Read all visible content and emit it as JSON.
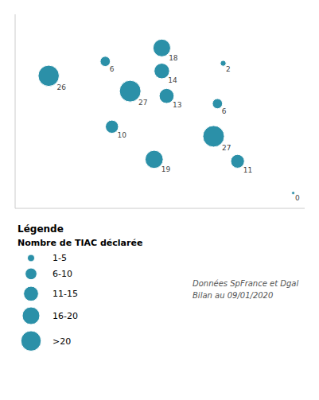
{
  "chart_data": {
    "type": "scatter",
    "x": [
      -3.55,
      -0.6,
      2.35,
      2.35,
      5.55,
      0.7,
      2.6,
      5.25,
      -0.25,
      5.05,
      1.95,
      6.3,
      9.2
    ],
    "y": [
      48.1,
      48.85,
      49.55,
      48.35,
      48.75,
      47.3,
      47.05,
      46.65,
      45.45,
      44.95,
      43.75,
      43.65,
      42.0
    ],
    "sizes": [
      26,
      6,
      18,
      14,
      2,
      27,
      13,
      6,
      10,
      27,
      19,
      11,
      0
    ],
    "data_labels": true,
    "color": "#2b90a8",
    "xlim": [
      -5.3,
      9.8
    ],
    "ylim": [
      41.2,
      51.3
    ],
    "tick_labels": false,
    "grid": false,
    "size_legend": {
      "heading": "Légende",
      "title": "Nombre de TIAC déclarée",
      "labels": [
        "1-5",
        "6-10",
        "11-15",
        "16-20",
        ">20"
      ],
      "sizes": [
        3,
        8,
        13,
        18,
        24
      ]
    },
    "annotations": [
      "Données SpFrance et Dgal\nBilan au 09/01/2020"
    ]
  }
}
